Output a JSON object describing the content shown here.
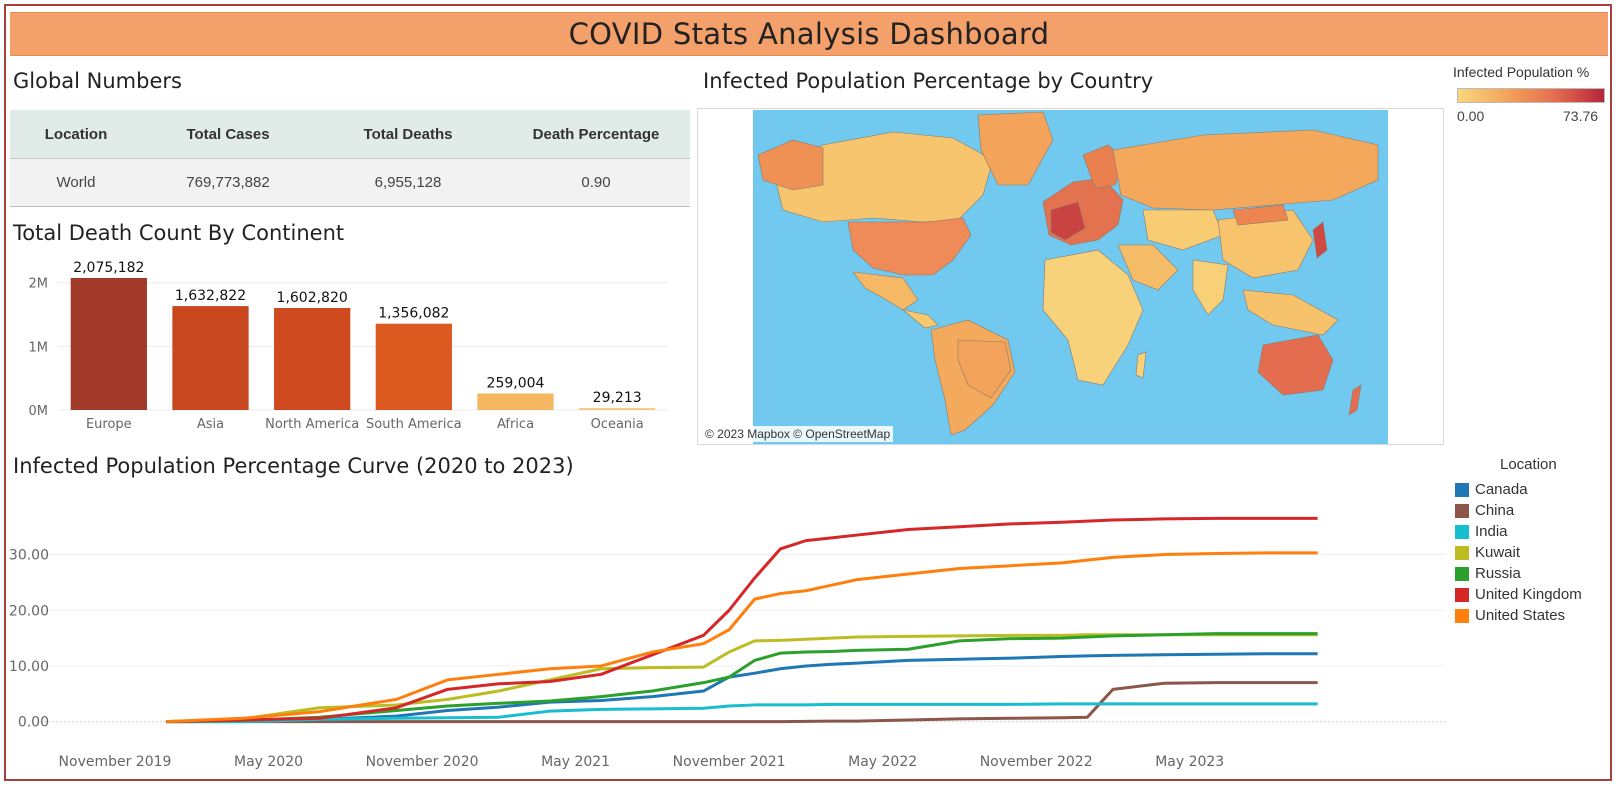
{
  "dashboard": {
    "title": "COVID Stats Analysis Dashboard"
  },
  "global": {
    "title": "Global Numbers",
    "headers": [
      "Location",
      "Total Cases",
      "Total Deaths",
      "Death Percentage"
    ],
    "row": [
      "World",
      "769,773,882",
      "6,955,128",
      "0.90"
    ]
  },
  "continent": {
    "title": "Total Death Count By Continent"
  },
  "map": {
    "title": "Infected Population Percentage by Country",
    "attribution": "© 2023 Mapbox © OpenStreetMap",
    "legend_title": "Infected Population %",
    "legend_min": "0.00",
    "legend_max": "73.76",
    "ocean_color": "#72c9ef",
    "scale_colors": [
      "#f9d77c",
      "#f3a45a",
      "#e46d50",
      "#b5253a"
    ]
  },
  "curve": {
    "title": "Infected Population Percentage Curve (2020 to 2023)",
    "legend_title": "Location"
  },
  "chart_data": [
    {
      "type": "bar",
      "title": "Total Death Count By Continent",
      "categories": [
        "Europe",
        "Asia",
        "North America",
        "South America",
        "Africa",
        "Oceania"
      ],
      "values": [
        2075182,
        1632822,
        1602820,
        1356082,
        259004,
        29213
      ],
      "value_labels": [
        "2,075,182",
        "1,632,822",
        "1,602,820",
        "1,356,082",
        "259,004",
        "29,213"
      ],
      "colors": [
        "#a13a28",
        "#c8471f",
        "#cf4a1f",
        "#dc5a20",
        "#f4b660",
        "#f3c97a"
      ],
      "y_ticks": [
        {
          "v": 0,
          "label": "0M"
        },
        {
          "v": 1000000,
          "label": "1M"
        },
        {
          "v": 2000000,
          "label": "2M"
        }
      ],
      "ylim": [
        0,
        2200000
      ],
      "grid": true
    },
    {
      "type": "line",
      "title": "Infected Population Percentage Curve (2020 to 2023)",
      "x_ticks": [
        "November 2019",
        "May 2020",
        "November 2020",
        "May 2021",
        "November 2021",
        "May 2022",
        "November 2022",
        "May 2023"
      ],
      "y_ticks": [
        "0.00",
        "10.00",
        "20.00",
        "30.00"
      ],
      "ylim": [
        -1.5,
        38
      ],
      "x": [
        "2020-01",
        "2020-04",
        "2020-07",
        "2020-10",
        "2020-12",
        "2021-02",
        "2021-04",
        "2021-06",
        "2021-08",
        "2021-10",
        "2021-11",
        "2021-12",
        "2022-01",
        "2022-02",
        "2022-03",
        "2022-04",
        "2022-06",
        "2022-08",
        "2022-10",
        "2022-12",
        "2023-01",
        "2023-02",
        "2023-04",
        "2023-06",
        "2023-08",
        "2023-10"
      ],
      "series": [
        {
          "name": "Canada",
          "color": "#1f77b4",
          "values": [
            0,
            0.05,
            0.4,
            1,
            2,
            2.6,
            3.5,
            3.8,
            4.5,
            5.5,
            8.0,
            8.7,
            9.5,
            10.0,
            10.3,
            10.5,
            11.0,
            11.2,
            11.4,
            11.7,
            11.8,
            11.9,
            12.0,
            12.1,
            12.2,
            12.2
          ]
        },
        {
          "name": "China",
          "color": "#8c564b",
          "values": [
            0,
            0,
            0,
            0,
            0,
            0,
            0,
            0,
            0,
            0,
            0,
            0,
            0,
            0.05,
            0.1,
            0.1,
            0.3,
            0.5,
            0.6,
            0.7,
            0.8,
            5.8,
            6.9,
            7.0,
            7.0,
            7.0
          ]
        },
        {
          "name": "India",
          "color": "#17becf",
          "values": [
            0,
            0,
            0.4,
            0.6,
            0.7,
            0.8,
            1.9,
            2.2,
            2.3,
            2.4,
            2.8,
            3.0,
            3.0,
            3.0,
            3.1,
            3.1,
            3.1,
            3.1,
            3.1,
            3.2,
            3.2,
            3.2,
            3.2,
            3.2,
            3.2,
            3.2
          ]
        },
        {
          "name": "Kuwait",
          "color": "#bcbd22",
          "values": [
            0,
            0.5,
            2.5,
            3.0,
            4.0,
            5.5,
            7.5,
            9.5,
            9.7,
            9.8,
            12.5,
            14.5,
            14.6,
            14.8,
            15.0,
            15.2,
            15.3,
            15.4,
            15.5,
            15.5,
            15.6,
            15.6,
            15.6,
            15.6,
            15.6,
            15.6
          ]
        },
        {
          "name": "Russia",
          "color": "#2ca02c",
          "values": [
            0,
            0.2,
            0.8,
            2.0,
            2.8,
            3.3,
            3.7,
            4.5,
            5.5,
            7.0,
            8.0,
            11.0,
            12.3,
            12.5,
            12.6,
            12.8,
            13.0,
            14.5,
            14.9,
            15.0,
            15.2,
            15.4,
            15.6,
            15.8,
            15.8,
            15.8
          ]
        },
        {
          "name": "United Kingdom",
          "color": "#d62728",
          "values": [
            0,
            0.3,
            0.6,
            2.5,
            5.8,
            6.8,
            7.2,
            8.5,
            12.0,
            15.5,
            20.0,
            25.8,
            31.0,
            32.5,
            33.0,
            33.5,
            34.5,
            35.0,
            35.5,
            35.8,
            36.0,
            36.2,
            36.4,
            36.5,
            36.5,
            36.5
          ]
        },
        {
          "name": "United States",
          "color": "#ff7f0e",
          "values": [
            0,
            0.6,
            1.8,
            4.0,
            7.5,
            8.5,
            9.5,
            10.0,
            12.5,
            14.0,
            16.5,
            22.0,
            23.0,
            23.5,
            24.5,
            25.5,
            26.5,
            27.5,
            28.0,
            28.5,
            29.0,
            29.5,
            30.0,
            30.2,
            30.3,
            30.3
          ]
        }
      ]
    }
  ]
}
